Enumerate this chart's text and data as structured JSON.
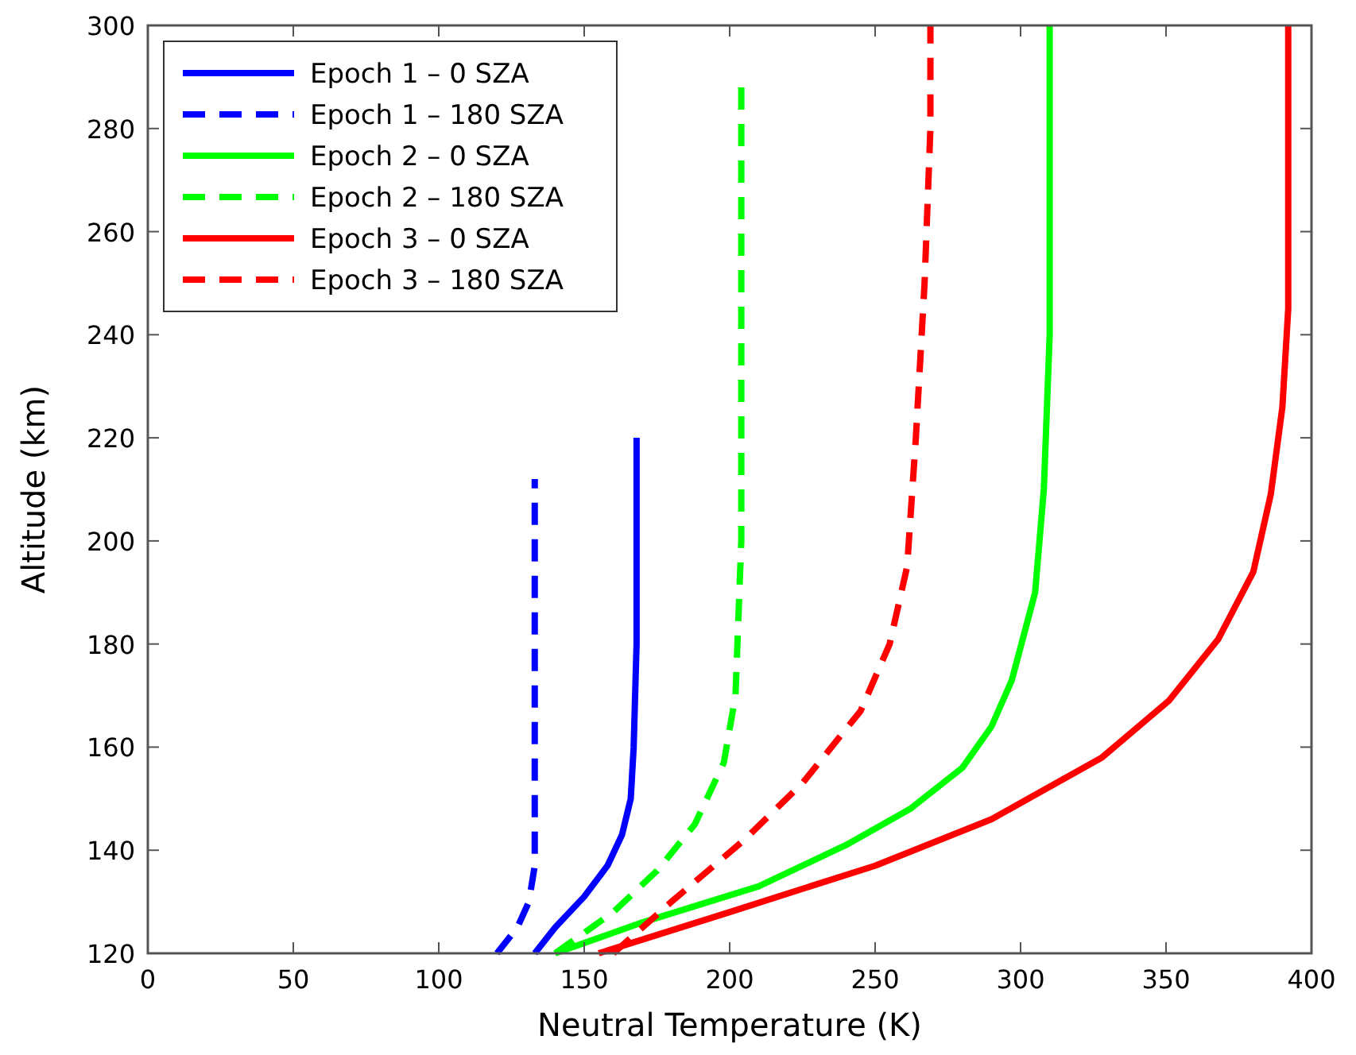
{
  "chart_data": {
    "type": "line",
    "xlabel": "Neutral Temperature (K)",
    "ylabel": "Altitude (km)",
    "xlim": [
      0,
      400
    ],
    "xticks": [
      0,
      50,
      100,
      150,
      200,
      250,
      300,
      350,
      400
    ],
    "ylim": [
      120,
      300
    ],
    "yticks": [
      120,
      140,
      160,
      180,
      200,
      220,
      240,
      260,
      280,
      300
    ],
    "grid": false,
    "legend": "top left",
    "series": [
      {
        "name": "Epoch 1 – 0 SZA",
        "color": "#0000ff",
        "line_style": "solid",
        "x": [
          133,
          140,
          150,
          158,
          163,
          166,
          167,
          168,
          168
        ],
        "values": [
          120,
          125,
          131,
          137,
          143,
          150,
          160,
          180,
          220
        ]
      },
      {
        "name": "Epoch 1 – 180 SZA",
        "color": "#0000ff",
        "line_style": "dashed",
        "x": [
          120,
          127,
          131,
          133,
          133,
          133
        ],
        "values": [
          120,
          125,
          130,
          137,
          150,
          212
        ]
      },
      {
        "name": "Epoch 2 – 0 SZA",
        "color": "#00ff00",
        "line_style": "solid",
        "x": [
          140,
          170,
          210,
          240,
          262,
          280,
          290,
          297,
          305,
          308,
          310,
          310
        ],
        "values": [
          120,
          126,
          133,
          141,
          148,
          156,
          164,
          173,
          190,
          210,
          240,
          300
        ]
      },
      {
        "name": "Epoch 2 – 180 SZA",
        "color": "#00ff00",
        "line_style": "dashed",
        "x": [
          140,
          160,
          175,
          188,
          198,
          202,
          204,
          204,
          204
        ],
        "values": [
          120,
          128,
          136,
          145,
          157,
          170,
          200,
          240,
          288
        ]
      },
      {
        "name": "Epoch 3 – 0 SZA",
        "color": "#ff0000",
        "line_style": "solid",
        "x": [
          155,
          200,
          250,
          290,
          328,
          351,
          368,
          380,
          386,
          390,
          392,
          392
        ],
        "values": [
          120,
          128,
          137,
          146,
          158,
          169,
          181,
          194,
          209,
          226,
          245,
          300
        ]
      },
      {
        "name": "Epoch 3 – 180 SZA",
        "color": "#ff0000",
        "line_style": "dashed",
        "x": [
          160,
          180,
          205,
          225,
          245,
          255,
          261,
          264,
          267,
          269,
          269
        ],
        "values": [
          120,
          130,
          142,
          153,
          167,
          180,
          195,
          220,
          250,
          280,
          300
        ]
      }
    ]
  }
}
